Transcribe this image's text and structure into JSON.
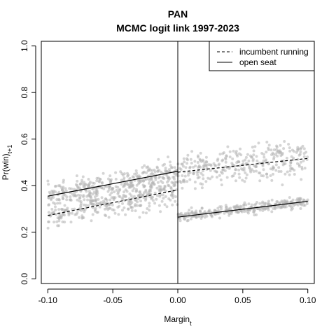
{
  "chart_data": {
    "type": "scatter",
    "title": "PAN",
    "subtitle": "MCMC logit link 1997-2023",
    "xlabel": "Margin",
    "xlabel_sub": "t",
    "ylabel": "Pr(win)",
    "ylabel_sub": "t+1",
    "xlim": [
      -0.105,
      0.105
    ],
    "ylim": [
      -0.02,
      1.02
    ],
    "xticks": [
      -0.1,
      -0.05,
      0.0,
      0.05,
      0.1
    ],
    "xtick_labels": [
      "-0.10",
      "-0.05",
      "0.00",
      "0.05",
      "0.10"
    ],
    "yticks": [
      0.0,
      0.2,
      0.4,
      0.6,
      0.8,
      1.0
    ],
    "ytick_labels": [
      "0.0",
      "0.2",
      "0.4",
      "0.6",
      "0.8",
      "1.0"
    ],
    "cutoff": 0.0,
    "legend": {
      "position": "top-right",
      "entries": [
        {
          "label": "incumbent running",
          "style": "dashed"
        },
        {
          "label": "open seat",
          "style": "solid"
        }
      ]
    },
    "series": [
      {
        "name": "open seat",
        "style": "solid",
        "segments": [
          {
            "x": [
              -0.1,
              0.0
            ],
            "y": [
              0.355,
              0.462
            ]
          },
          {
            "x": [
              0.0,
              0.1
            ],
            "y": [
              0.265,
              0.333
            ]
          }
        ],
        "point_band": {
          "left": {
            "x": [
              -0.1,
              0.0
            ],
            "y_center": [
              0.355,
              0.462
            ],
            "spread": 0.04
          },
          "right": {
            "x": [
              0.0,
              0.1
            ],
            "y_center": [
              0.265,
              0.333
            ],
            "spread": 0.018
          }
        }
      },
      {
        "name": "incumbent running",
        "style": "dashed",
        "segments": [
          {
            "x": [
              -0.1,
              0.0
            ],
            "y": [
              0.272,
              0.382
            ]
          },
          {
            "x": [
              0.0,
              0.1
            ],
            "y": [
              0.458,
              0.517
            ]
          }
        ],
        "point_band": {
          "left": {
            "x": [
              -0.1,
              0.0
            ],
            "y_center": [
              0.272,
              0.382
            ],
            "spread": 0.05
          },
          "right": {
            "x": [
              0.0,
              0.1
            ],
            "y_center": [
              0.458,
              0.517
            ],
            "spread": 0.065
          }
        }
      }
    ],
    "point_color": "#b3b3b3"
  }
}
